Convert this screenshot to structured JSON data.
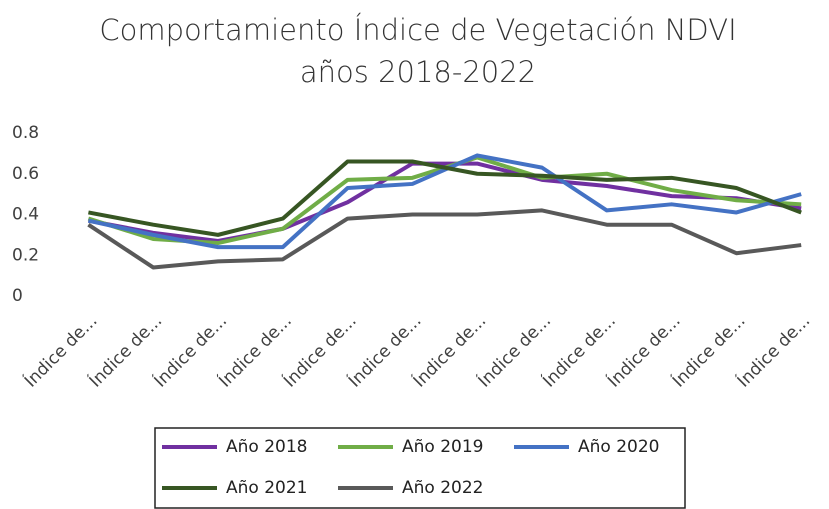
{
  "chart_data": {
    "type": "line",
    "title": [
      "Comportamiento Índice de Vegetación NDVI",
      "años 2018-2022"
    ],
    "categories": [
      "Índice de...",
      "Índice de...",
      "Índice de...",
      "Índice de...",
      "Índice de...",
      "Índice de...",
      "Índice de...",
      "Índice de...",
      "Índice de...",
      "Índice de...",
      "Índice de...",
      "Índice de..."
    ],
    "series": [
      {
        "name": "Año 2018",
        "color": "#7030a0",
        "values": [
          0.37,
          0.31,
          0.27,
          0.33,
          0.46,
          0.65,
          0.65,
          0.57,
          0.54,
          0.49,
          0.48,
          0.43
        ]
      },
      {
        "name": "Año 2019",
        "color": "#70ad47",
        "values": [
          0.38,
          0.28,
          0.26,
          0.33,
          0.57,
          0.58,
          0.68,
          0.58,
          0.6,
          0.52,
          0.47,
          0.45
        ]
      },
      {
        "name": "Año 2020",
        "color": "#4472c4",
        "values": [
          0.37,
          0.3,
          0.24,
          0.24,
          0.53,
          0.55,
          0.69,
          0.63,
          0.42,
          0.45,
          0.41,
          0.5
        ]
      },
      {
        "name": "Año 2021",
        "color": "#375623",
        "values": [
          0.41,
          0.35,
          0.3,
          0.38,
          0.66,
          0.66,
          0.6,
          0.59,
          0.57,
          0.58,
          0.53,
          0.41
        ]
      },
      {
        "name": "Año 2022",
        "color": "#595959",
        "values": [
          0.35,
          0.14,
          0.17,
          0.18,
          0.38,
          0.4,
          0.4,
          0.42,
          0.35,
          0.35,
          0.21,
          0.25
        ]
      }
    ],
    "ylim": [
      0,
      0.8
    ],
    "yticks": [
      0,
      0.2,
      0.4,
      0.6,
      0.8
    ],
    "grid": false,
    "legend": "bottom"
  }
}
